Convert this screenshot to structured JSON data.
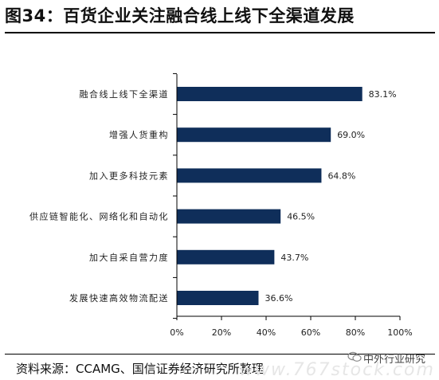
{
  "title": "图34：百货企业关注融合线上线下全渠道发展",
  "source": "资料来源：CCAMG、国信证券经济研究所整理",
  "watermark": {
    "icon": "wechat-icon",
    "text": "中外行业研究",
    "site": "www.767stock.com"
  },
  "colors": {
    "bar": "#0f2e5a",
    "axis": "#000000"
  },
  "chart_data": {
    "type": "bar",
    "orientation": "horizontal",
    "categories": [
      "融合线上线下全渠道",
      "增强人货重构",
      "加入更多科技元素",
      "供应链智能化、网络化和自动化",
      "加大自采自营力度",
      "发展快速高效物流配送"
    ],
    "values": [
      83.1,
      69.0,
      64.8,
      46.5,
      43.7,
      36.6
    ],
    "value_labels": [
      "83.1%",
      "69.0%",
      "64.8%",
      "46.5%",
      "43.7%",
      "36.6%"
    ],
    "xlim": [
      0,
      100
    ],
    "xticks": [
      0,
      20,
      40,
      60,
      80,
      100
    ],
    "xtick_labels": [
      "0%",
      "20%",
      "40%",
      "60%",
      "80%",
      "100%"
    ],
    "grid": false,
    "legend": "none"
  }
}
